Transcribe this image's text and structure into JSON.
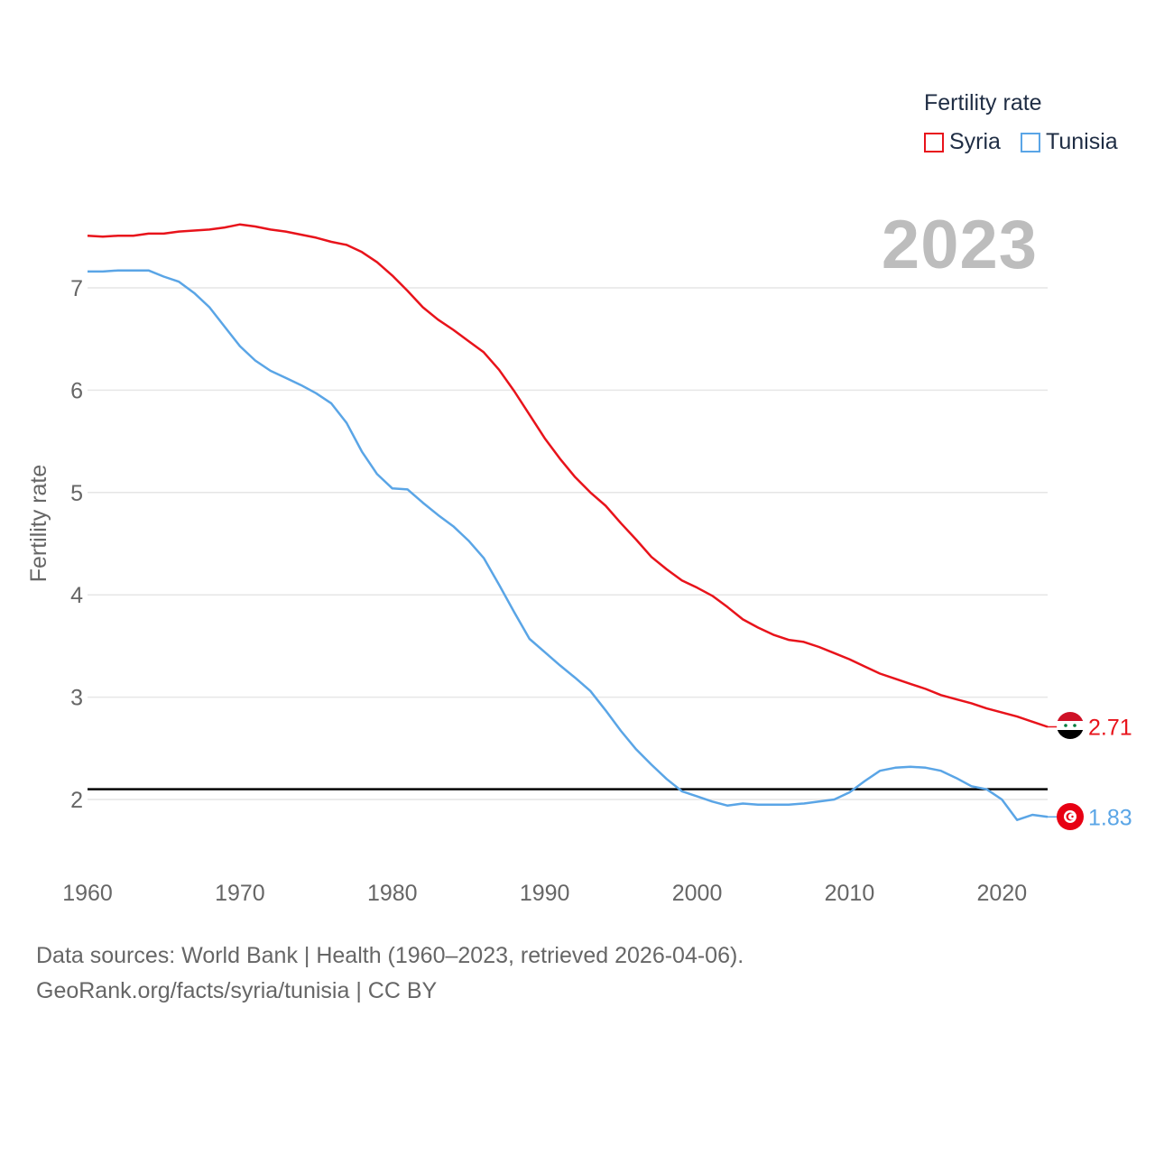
{
  "legend": {
    "title": "Fertility rate",
    "items": [
      {
        "name": "Syria",
        "color": "#e8131b"
      },
      {
        "name": "Tunisia",
        "color": "#5aa5e6"
      }
    ]
  },
  "year_label": "2023",
  "footer": {
    "line1": "Data sources: World Bank | Health (1960–2023, retrieved 2026-04-06).",
    "line2": "GeoRank.org/facts/syria/tunisia | CC BY"
  },
  "chart_data": {
    "type": "line",
    "title": "Fertility rate",
    "xlabel": "",
    "ylabel": "Fertility rate",
    "xlim": [
      1960,
      2023
    ],
    "ylim": [
      1.4,
      7.8
    ],
    "x_ticks": [
      "1960",
      "1970",
      "1980",
      "1990",
      "2000",
      "2010",
      "2020"
    ],
    "y_ticks": [
      "2",
      "3",
      "4",
      "5",
      "6",
      "7"
    ],
    "grid": true,
    "reference_line": {
      "y": 2.1,
      "color": "#000000"
    },
    "x": [
      1960,
      1961,
      1962,
      1963,
      1964,
      1965,
      1966,
      1967,
      1968,
      1969,
      1970,
      1971,
      1972,
      1973,
      1974,
      1975,
      1976,
      1977,
      1978,
      1979,
      1980,
      1981,
      1982,
      1983,
      1984,
      1985,
      1986,
      1987,
      1988,
      1989,
      1990,
      1991,
      1992,
      1993,
      1994,
      1995,
      1996,
      1997,
      1998,
      1999,
      2000,
      2001,
      2002,
      2003,
      2004,
      2005,
      2006,
      2007,
      2008,
      2009,
      2010,
      2011,
      2012,
      2013,
      2014,
      2015,
      2016,
      2017,
      2018,
      2019,
      2020,
      2021,
      2022,
      2023
    ],
    "series": [
      {
        "name": "Syria",
        "color": "#e8131b",
        "values": [
          7.51,
          7.5,
          7.51,
          7.51,
          7.53,
          7.53,
          7.55,
          7.56,
          7.57,
          7.59,
          7.62,
          7.6,
          7.57,
          7.55,
          7.52,
          7.49,
          7.45,
          7.42,
          7.35,
          7.25,
          7.12,
          6.97,
          6.81,
          6.69,
          6.59,
          6.48,
          6.37,
          6.2,
          5.99,
          5.76,
          5.53,
          5.33,
          5.15,
          5.0,
          4.87,
          4.7,
          4.54,
          4.37,
          4.25,
          4.14,
          4.07,
          3.99,
          3.88,
          3.76,
          3.68,
          3.61,
          3.56,
          3.54,
          3.49,
          3.43,
          3.37,
          3.3,
          3.23,
          3.18,
          3.13,
          3.08,
          3.02,
          2.98,
          2.94,
          2.89,
          2.85,
          2.81,
          2.76,
          2.71
        ],
        "end_label": "2.71"
      },
      {
        "name": "Tunisia",
        "color": "#5aa5e6",
        "values": [
          7.16,
          7.16,
          7.17,
          7.17,
          7.17,
          7.11,
          7.06,
          6.95,
          6.81,
          6.62,
          6.43,
          6.29,
          6.19,
          6.12,
          6.05,
          5.97,
          5.87,
          5.68,
          5.4,
          5.18,
          5.04,
          5.03,
          4.9,
          4.78,
          4.67,
          4.53,
          4.36,
          4.1,
          3.83,
          3.57,
          3.44,
          3.31,
          3.19,
          3.06,
          2.87,
          2.67,
          2.49,
          2.34,
          2.2,
          2.08,
          2.03,
          1.98,
          1.94,
          1.96,
          1.95,
          1.95,
          1.95,
          1.96,
          1.98,
          2.0,
          2.07,
          2.18,
          2.28,
          2.31,
          2.32,
          2.31,
          2.28,
          2.21,
          2.13,
          2.1,
          2.0,
          1.8,
          1.85,
          1.83
        ],
        "end_label": "1.83"
      }
    ]
  }
}
